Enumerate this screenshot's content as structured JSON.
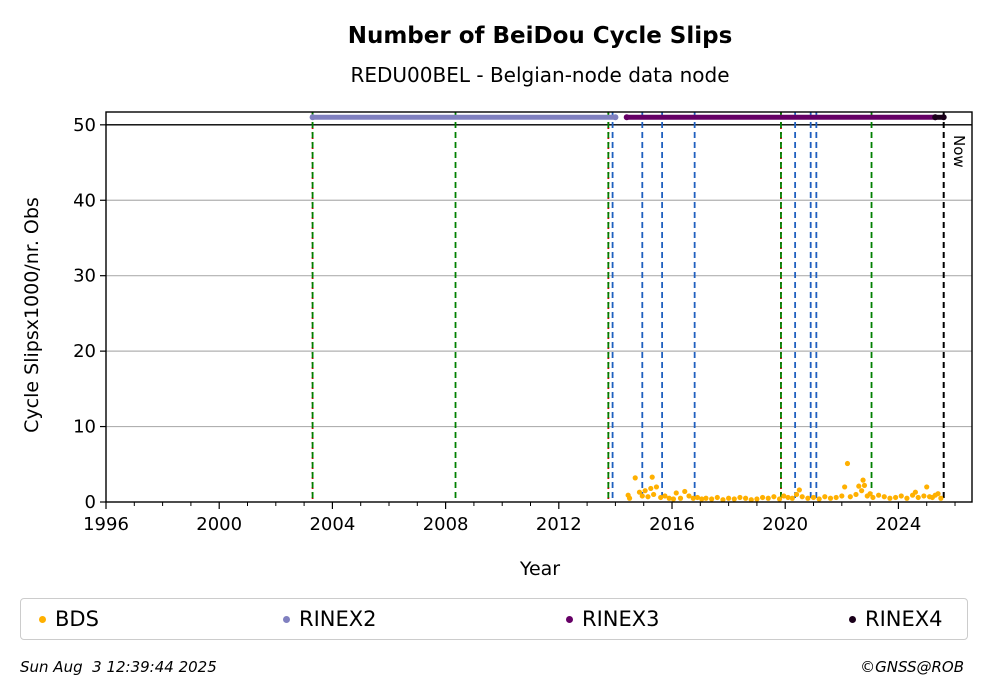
{
  "chart_data": {
    "type": "scatter",
    "title": "Number of BeiDou Cycle Slips",
    "subtitle": "REDU00BEL - Belgian-node data node",
    "xlabel": "Year",
    "ylabel": "Cycle Slipsx1000/nr. Obs",
    "xlim": [
      1996,
      2026.6
    ],
    "ylim": [
      0,
      51.7
    ],
    "x_ticks": [
      1996,
      2000,
      2004,
      2008,
      2012,
      2016,
      2020,
      2024
    ],
    "y_ticks": [
      0,
      10,
      20,
      30,
      40,
      50
    ],
    "grid": "horizontal",
    "legend_position": "bottom",
    "series": [
      {
        "name": "BDS",
        "color": "#ffb000",
        "x": [
          2014.45,
          2014.5,
          2014.7,
          2014.85,
          2014.95,
          2015.05,
          2015.15,
          2015.25,
          2015.3,
          2015.35,
          2015.45,
          2015.6,
          2015.75,
          2015.9,
          2016.05,
          2016.15,
          2016.3,
          2016.45,
          2016.6,
          2016.75,
          2016.9,
          2017.05,
          2017.2,
          2017.4,
          2017.6,
          2017.8,
          2018.0,
          2018.2,
          2018.4,
          2018.6,
          2018.8,
          2019.0,
          2019.2,
          2019.4,
          2019.6,
          2019.8,
          2019.95,
          2020.1,
          2020.25,
          2020.4,
          2020.5,
          2020.6,
          2020.8,
          2021.0,
          2021.2,
          2021.4,
          2021.6,
          2021.8,
          2022.0,
          2022.1,
          2022.2,
          2022.3,
          2022.5,
          2022.6,
          2022.7,
          2022.75,
          2022.8,
          2022.9,
          2023.0,
          2023.1,
          2023.3,
          2023.5,
          2023.7,
          2023.9,
          2024.1,
          2024.3,
          2024.5,
          2024.6,
          2024.7,
          2024.9,
          2025.0,
          2025.1,
          2025.2,
          2025.3,
          2025.4,
          2025.5
        ],
        "y": [
          0.9,
          0.5,
          3.2,
          1.3,
          0.8,
          1.5,
          0.7,
          1.8,
          3.3,
          1.0,
          2.0,
          0.6,
          0.8,
          0.5,
          0.4,
          1.2,
          0.5,
          1.4,
          0.8,
          0.5,
          0.6,
          0.4,
          0.5,
          0.4,
          0.6,
          0.3,
          0.5,
          0.4,
          0.6,
          0.5,
          0.3,
          0.4,
          0.6,
          0.5,
          0.7,
          0.4,
          0.8,
          0.6,
          0.5,
          1.0,
          1.6,
          0.7,
          0.5,
          0.6,
          0.4,
          0.7,
          0.5,
          0.6,
          0.8,
          2.0,
          5.1,
          0.7,
          1.0,
          2.1,
          1.5,
          2.9,
          2.2,
          0.8,
          1.1,
          0.6,
          0.9,
          0.7,
          0.5,
          0.6,
          0.8,
          0.5,
          0.9,
          1.3,
          0.6,
          0.8,
          2.0,
          0.7,
          0.6,
          0.9,
          1.1,
          0.5
        ]
      },
      {
        "name": "RINEX2",
        "color": "#8080c0",
        "x_start": 2003.3,
        "x_end": 2014.0,
        "y": 51
      },
      {
        "name": "RINEX3",
        "color": "#660066",
        "x_start": 2014.4,
        "x_end": 2025.3,
        "y": 51
      },
      {
        "name": "RINEX4",
        "color": "#1a001a",
        "x_start": 2025.3,
        "x_end": 2025.6,
        "y": 51
      }
    ],
    "vertical_lines": [
      {
        "x": 2003.3,
        "color": "#cc0000",
        "style": "dotted"
      },
      {
        "x": 2003.3,
        "color": "#008000",
        "style": "dashed"
      },
      {
        "x": 2008.35,
        "color": "#008000",
        "style": "dashed"
      },
      {
        "x": 2013.75,
        "color": "#cc0000",
        "style": "dotted"
      },
      {
        "x": 2013.75,
        "color": "#008000",
        "style": "dashed"
      },
      {
        "x": 2013.9,
        "color": "#1f5fbf",
        "style": "dashed"
      },
      {
        "x": 2014.95,
        "color": "#1f5fbf",
        "style": "dashed"
      },
      {
        "x": 2015.65,
        "color": "#1f5fbf",
        "style": "dashed"
      },
      {
        "x": 2016.8,
        "color": "#1f5fbf",
        "style": "dashed"
      },
      {
        "x": 2019.85,
        "color": "#cc0000",
        "style": "dotted"
      },
      {
        "x": 2019.85,
        "color": "#008000",
        "style": "dashed"
      },
      {
        "x": 2020.35,
        "color": "#1f5fbf",
        "style": "dashed"
      },
      {
        "x": 2020.9,
        "color": "#1f5fbf",
        "style": "dashed"
      },
      {
        "x": 2021.1,
        "color": "#1f5fbf",
        "style": "dashed"
      },
      {
        "x": 2023.05,
        "color": "#008000",
        "style": "dashed"
      },
      {
        "x": 2025.6,
        "color": "#000000",
        "style": "dashed"
      }
    ],
    "hline": {
      "y": 50,
      "color": "#000000"
    },
    "now_label": "Now"
  },
  "footer": {
    "timestamp": "Sun Aug  3 12:39:44 2025",
    "credit": "©GNSS@ROB"
  }
}
